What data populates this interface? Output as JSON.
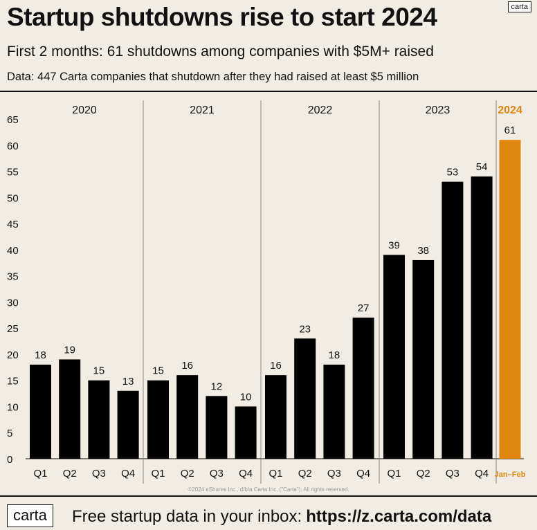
{
  "header": {
    "title": "Startup shutdowns rise to start 2024",
    "subtitle": "First 2 months: 61 shutdowns among companies with $5M+ raised",
    "source": "Data:  447 Carta companies that shutdown after they had raised at least $5 million",
    "logo": "carta"
  },
  "footer": {
    "logo": "carta",
    "text": "Free startup data in your inbox:",
    "url": "https://z.carta.com/data",
    "copyright": "©2024 eShares Inc., d/b/a Carta Inc. (\"Carta\"). All rights reserved."
  },
  "colors": {
    "bar": "#000000",
    "highlight": "#e0860f",
    "background": "#f2ede4",
    "divider": "#888888"
  },
  "chart_data": {
    "type": "bar",
    "title": "Startup shutdowns rise to start 2024",
    "xlabel": "",
    "ylabel": "",
    "ylim": [
      0,
      65
    ],
    "yticks": [
      0,
      5,
      10,
      15,
      20,
      25,
      30,
      35,
      40,
      45,
      50,
      55,
      60,
      65
    ],
    "groups": [
      {
        "label": "2020",
        "categories": [
          "Q1",
          "Q2",
          "Q3",
          "Q4"
        ],
        "values": [
          18,
          19,
          15,
          13
        ],
        "highlight": false
      },
      {
        "label": "2021",
        "categories": [
          "Q1",
          "Q2",
          "Q3",
          "Q4"
        ],
        "values": [
          15,
          16,
          12,
          10
        ],
        "highlight": false
      },
      {
        "label": "2022",
        "categories": [
          "Q1",
          "Q2",
          "Q3",
          "Q4"
        ],
        "values": [
          16,
          23,
          18,
          27
        ],
        "highlight": false
      },
      {
        "label": "2023",
        "categories": [
          "Q1",
          "Q2",
          "Q3",
          "Q4"
        ],
        "values": [
          39,
          38,
          53,
          54
        ],
        "highlight": false
      },
      {
        "label": "2024",
        "categories": [
          "Jan–Feb"
        ],
        "values": [
          61
        ],
        "highlight": true
      }
    ]
  }
}
